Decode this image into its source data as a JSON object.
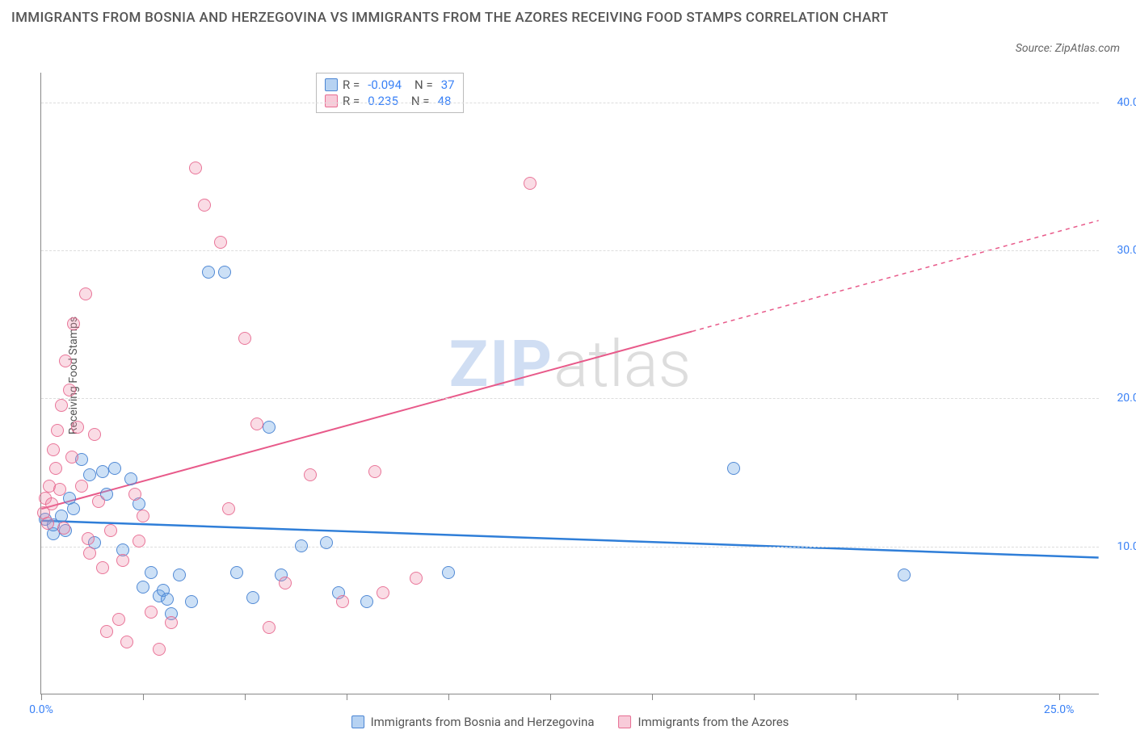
{
  "title": "IMMIGRANTS FROM BOSNIA AND HERZEGOVINA VS IMMIGRANTS FROM THE AZORES RECEIVING FOOD STAMPS CORRELATION CHART",
  "source_prefix": "Source: ",
  "source_site": "ZipAtlas.com",
  "y_axis_label": "Receiving Food Stamps",
  "watermark": {
    "zip": "ZIP",
    "atlas": "atlas"
  },
  "chart": {
    "type": "scatter",
    "xlim": [
      0,
      26
    ],
    "ylim": [
      0,
      42
    ],
    "x_ticks": [
      0,
      2.5,
      5,
      7.5,
      10,
      12.5,
      15,
      17.5,
      20,
      22.5,
      25
    ],
    "x_tick_labels": {
      "0": "0.0%",
      "25": "25.0%"
    },
    "y_gridlines": [
      10,
      20,
      30,
      40
    ],
    "y_tick_labels": {
      "10": "10.0%",
      "20": "20.0%",
      "30": "30.0%",
      "40": "40.0%"
    },
    "background_color": "#ffffff",
    "grid_color": "#dddddd",
    "axis_color": "#888888",
    "label_color": "#3b82f6",
    "series": [
      {
        "name": "Immigrants from Bosnia and Herzegovina",
        "key": "blue",
        "color_fill": "rgba(110,165,230,0.35)",
        "color_stroke": "rgba(70,130,210,0.9)",
        "R": "-0.094",
        "N": "37",
        "trend": {
          "y_at_x0": 11.7,
          "y_at_xmax": 9.2,
          "solid": true
        },
        "points": [
          [
            0.1,
            11.8
          ],
          [
            0.3,
            10.8
          ],
          [
            0.3,
            11.4
          ],
          [
            0.5,
            12
          ],
          [
            0.6,
            11
          ],
          [
            0.7,
            13.2
          ],
          [
            0.8,
            12.5
          ],
          [
            1.0,
            15.8
          ],
          [
            1.2,
            14.8
          ],
          [
            1.3,
            10.2
          ],
          [
            1.5,
            15
          ],
          [
            1.6,
            13.5
          ],
          [
            1.8,
            15.2
          ],
          [
            2.0,
            9.7
          ],
          [
            2.2,
            14.5
          ],
          [
            2.4,
            12.8
          ],
          [
            2.5,
            7.2
          ],
          [
            2.7,
            8.2
          ],
          [
            2.9,
            6.6
          ],
          [
            3.0,
            7.0
          ],
          [
            3.1,
            6.4
          ],
          [
            3.2,
            5.4
          ],
          [
            3.4,
            8.0
          ],
          [
            3.7,
            6.2
          ],
          [
            4.1,
            28.5
          ],
          [
            4.5,
            28.5
          ],
          [
            4.8,
            8.2
          ],
          [
            5.2,
            6.5
          ],
          [
            5.6,
            18
          ],
          [
            5.9,
            8.0
          ],
          [
            6.4,
            10.0
          ],
          [
            7.0,
            10.2
          ],
          [
            7.3,
            6.8
          ],
          [
            8.0,
            6.2
          ],
          [
            10.0,
            8.2
          ],
          [
            17.0,
            15.2
          ],
          [
            21.2,
            8.0
          ]
        ]
      },
      {
        "name": "Immigrants from the Azores",
        "key": "pink",
        "color_fill": "rgba(240,140,170,0.3)",
        "color_stroke": "rgba(230,100,140,0.85)",
        "R": "0.235",
        "N": "48",
        "trend": {
          "y_at_x0": 12.5,
          "y_at_xmax": 32,
          "solid_until_x": 16
        },
        "points": [
          [
            0.05,
            12.2
          ],
          [
            0.1,
            13.2
          ],
          [
            0.15,
            11.5
          ],
          [
            0.2,
            14.0
          ],
          [
            0.25,
            12.8
          ],
          [
            0.3,
            16.5
          ],
          [
            0.35,
            15.2
          ],
          [
            0.4,
            17.8
          ],
          [
            0.45,
            13.8
          ],
          [
            0.5,
            19.5
          ],
          [
            0.55,
            11.2
          ],
          [
            0.6,
            22.5
          ],
          [
            0.7,
            20.5
          ],
          [
            0.75,
            16.0
          ],
          [
            0.8,
            25.0
          ],
          [
            0.9,
            18.0
          ],
          [
            1.0,
            14.0
          ],
          [
            1.1,
            27.0
          ],
          [
            1.15,
            10.5
          ],
          [
            1.2,
            9.5
          ],
          [
            1.3,
            17.5
          ],
          [
            1.4,
            13.0
          ],
          [
            1.5,
            8.5
          ],
          [
            1.6,
            4.2
          ],
          [
            1.7,
            11.0
          ],
          [
            1.9,
            5.0
          ],
          [
            2.0,
            9.0
          ],
          [
            2.1,
            3.5
          ],
          [
            2.3,
            13.5
          ],
          [
            2.4,
            10.3
          ],
          [
            2.5,
            12.0
          ],
          [
            2.7,
            5.5
          ],
          [
            2.9,
            3.0
          ],
          [
            3.2,
            4.8
          ],
          [
            3.8,
            35.5
          ],
          [
            4.0,
            33.0
          ],
          [
            4.4,
            30.5
          ],
          [
            4.6,
            12.5
          ],
          [
            5.0,
            24.0
          ],
          [
            5.3,
            18.2
          ],
          [
            5.6,
            4.5
          ],
          [
            6.0,
            7.5
          ],
          [
            6.6,
            14.8
          ],
          [
            7.4,
            6.2
          ],
          [
            8.2,
            15.0
          ],
          [
            8.4,
            6.8
          ],
          [
            9.2,
            7.8
          ],
          [
            12.0,
            34.5
          ]
        ]
      }
    ]
  },
  "legend_top": {
    "r_label": "R =",
    "n_label": "N ="
  },
  "legend_bottom": {}
}
